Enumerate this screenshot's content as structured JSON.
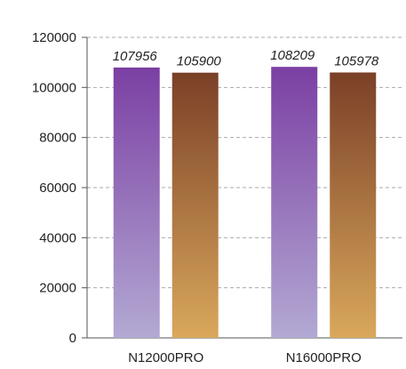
{
  "chart_data": {
    "type": "bar",
    "categories": [
      "N12000PRO",
      "N16000PRO"
    ],
    "series": [
      {
        "values": [
          107956,
          108209
        ],
        "gradient": [
          "#7b3fa3",
          "#b3a9d3"
        ]
      },
      {
        "values": [
          105900,
          105978
        ],
        "gradient": [
          "#7a4027",
          "#d9a85c"
        ]
      }
    ],
    "ylim": [
      0,
      120000
    ],
    "yticks": [
      0,
      20000,
      40000,
      60000,
      80000,
      100000,
      120000
    ],
    "grid": true,
    "grid_color": "#aaaaaa",
    "axis_color": "#555555"
  }
}
